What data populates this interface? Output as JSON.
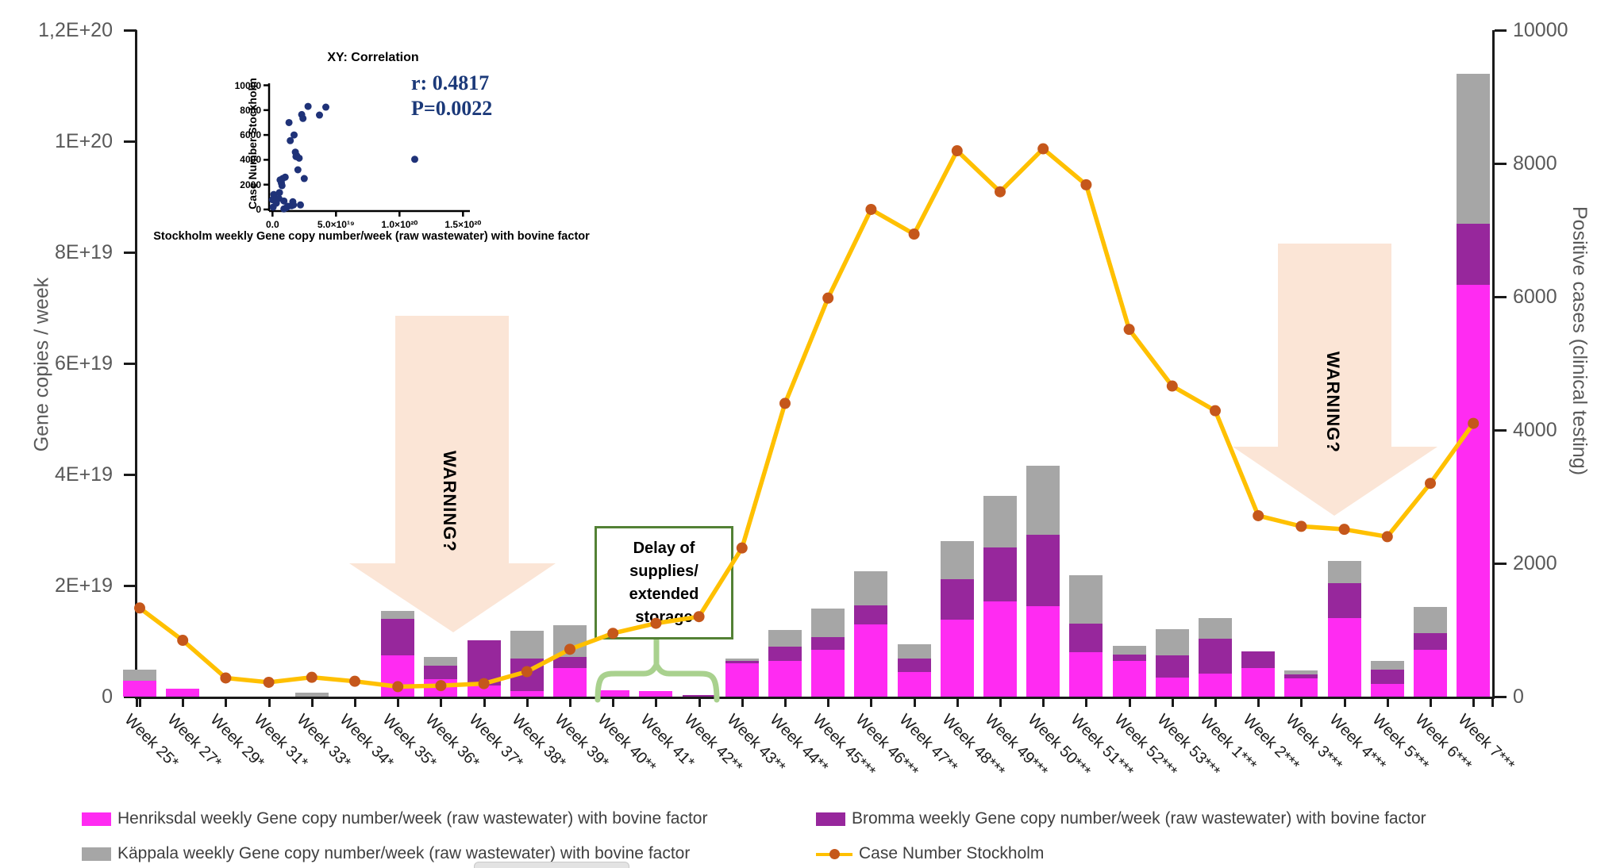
{
  "chart_data": {
    "type": "bar+line",
    "title": "",
    "categories": [
      "Week 25*",
      "Week 27*",
      "Week 29*",
      "Week 31*",
      "Week 33*",
      "Week 34*",
      "Week 35*",
      "Week 36*",
      "Week 37*",
      "Week 38*",
      "Week 39*",
      "Week 40**",
      "Week 41*",
      "Week 42**",
      "Week 43**",
      "Week 44**",
      "Week 45***",
      "Week 46***",
      "Week 47**",
      "Week 48***",
      "Week 49***",
      "Week 50***",
      "Week 51***",
      "Week 52***",
      "Week 53***",
      "Week 1***",
      "Week 2***",
      "Week 3***",
      "Week 4***",
      "Week 5***",
      "Week 6***",
      "Week 7***"
    ],
    "bar_value_unit": "gene copies per week, in units of 1e19",
    "series": [
      {
        "name": "Henriksdal weekly Gene copy number/week (raw wastewater) with bovine factor",
        "color": "#FF2BF2",
        "values": [
          0.29,
          0.14,
          0,
          0,
          0,
          0,
          0.75,
          0.32,
          0.2,
          0.1,
          0.52,
          0.12,
          0.1,
          0,
          0.6,
          0.65,
          0.85,
          1.3,
          0.45,
          1.38,
          1.71,
          1.63,
          0.8,
          0.64,
          0.35,
          0.42,
          0.52,
          0.33,
          1.42,
          0.23,
          0.85,
          7.42
        ]
      },
      {
        "name": "Bromma weekly Gene copy number/week (raw wastewater) with bovine factor",
        "color": "#97279C",
        "values": [
          0,
          0,
          0,
          0,
          0,
          0,
          0.65,
          0.24,
          0.82,
          0.58,
          0.2,
          0,
          0,
          0.03,
          0.04,
          0.25,
          0.22,
          0.34,
          0.23,
          0.74,
          0.97,
          1.28,
          0.51,
          0.12,
          0.39,
          0.62,
          0.29,
          0.07,
          0.63,
          0.25,
          0.29,
          1.09
        ]
      },
      {
        "name": "Käppala weekly Gene copy number/week (raw wastewater) with bovine factor",
        "color": "#A6A6A6",
        "values": [
          0.2,
          0,
          0,
          0,
          0.07,
          0,
          0.15,
          0.16,
          0,
          0.5,
          0.56,
          0,
          0,
          0,
          0.04,
          0.3,
          0.52,
          0.62,
          0.27,
          0.68,
          0.94,
          1.25,
          0.88,
          0.16,
          0.48,
          0.37,
          0,
          0.07,
          0.4,
          0.17,
          0.47,
          2.7
        ]
      }
    ],
    "line": {
      "name": "Case Number Stockholm",
      "color": "#FFC000",
      "marker_color": "#C5571B",
      "values": [
        1330,
        845,
        280,
        215,
        290,
        230,
        150,
        165,
        195,
        375,
        710,
        950,
        1100,
        1200,
        2230,
        4400,
        5980,
        7310,
        6940,
        8190,
        7575,
        8220,
        7680,
        5510,
        4660,
        4290,
        2715,
        2555,
        2510,
        2400,
        3200,
        4100
      ]
    },
    "left_axis": {
      "label": "Gene copies / week",
      "tick_labels": [
        "1,2E+20",
        "1E+20",
        "8E+19",
        "6E+19",
        "4E+19",
        "2E+19",
        "0"
      ],
      "tick_values_e19": [
        12,
        10,
        8,
        6,
        4,
        2,
        0
      ],
      "max_e19": 12
    },
    "right_axis": {
      "label": "Positive cases (clinical testing)",
      "tick_labels": [
        "10000",
        "8000",
        "6000",
        "4000",
        "2000",
        "0"
      ],
      "tick_values": [
        10000,
        8000,
        6000,
        4000,
        2000,
        0
      ],
      "max": 10000
    },
    "grid": false,
    "legend_position": "bottom"
  },
  "inset": {
    "type": "scatter",
    "title": "XY: Correlation",
    "r_text": "r: 0.4817",
    "p_text": "P=0.0022",
    "xlabel": "Stockholm weekly Gene copy number/week (raw wastewater) with bovine factor",
    "ylabel": "Case Number Stockholm",
    "x_tick_labels": [
      "0.0",
      "5.0×10¹⁹",
      "1.0×10²⁰",
      "1.5×10²⁰"
    ],
    "x_tick_values_e19": [
      0,
      5,
      10,
      15
    ],
    "y_tick_labels": [
      "0",
      "2000",
      "4000",
      "6000",
      "8000",
      "10000"
    ],
    "y_tick_values": [
      0,
      2000,
      4000,
      6000,
      8000,
      10000
    ],
    "point_color": "#1f3278",
    "points_x_e19_y_cases": [
      [
        0.05,
        190
      ],
      [
        0.0,
        790
      ],
      [
        0.1,
        1210
      ],
      [
        0.15,
        940
      ],
      [
        0.3,
        510
      ],
      [
        0.5,
        890
      ],
      [
        0.55,
        1360
      ],
      [
        0.6,
        2380
      ],
      [
        0.7,
        2130
      ],
      [
        0.75,
        1920
      ],
      [
        0.8,
        2490
      ],
      [
        0.9,
        680
      ],
      [
        0.9,
        45
      ],
      [
        1.0,
        2600
      ],
      [
        1.1,
        150
      ],
      [
        1.2,
        255
      ],
      [
        1.3,
        7000
      ],
      [
        1.4,
        5540
      ],
      [
        1.5,
        300
      ],
      [
        1.6,
        620
      ],
      [
        1.65,
        365
      ],
      [
        1.7,
        6000
      ],
      [
        1.8,
        4620
      ],
      [
        1.85,
        4260
      ],
      [
        1.9,
        4340
      ],
      [
        2.0,
        3195
      ],
      [
        2.1,
        4130
      ],
      [
        2.2,
        365
      ],
      [
        2.3,
        7640
      ],
      [
        2.4,
        7330
      ],
      [
        2.5,
        2490
      ],
      [
        2.8,
        8300
      ],
      [
        3.7,
        7600
      ],
      [
        4.2,
        8240
      ],
      [
        11.2,
        4040
      ]
    ]
  },
  "annotations": {
    "warning_arrow_1": {
      "text": "WARNING?",
      "fill": "#FBE5D6"
    },
    "warning_arrow_2": {
      "text": "WARNING?",
      "fill": "#FBE5D6"
    },
    "delay_box": {
      "lines": [
        "Delay of",
        "supplies/",
        "extended",
        "storage"
      ],
      "border_color": "#538135"
    },
    "brace_color": "#A9D18E"
  },
  "legend": {
    "items": [
      {
        "label": "Henriksdal weekly Gene copy number/week (raw wastewater) with bovine factor",
        "swatch_color": "#FF2BF2",
        "marker": "square"
      },
      {
        "label": "Bromma weekly Gene copy number/week (raw wastewater) with bovine factor",
        "swatch_color": "#97279C",
        "marker": "square"
      },
      {
        "label": "Käppala weekly Gene copy number/week (raw wastewater) with bovine factor",
        "swatch_color": "#A6A6A6",
        "marker": "square"
      },
      {
        "label": "Case Number Stockholm",
        "swatch_color": "#FFC000",
        "marker": "line-dot"
      }
    ]
  }
}
